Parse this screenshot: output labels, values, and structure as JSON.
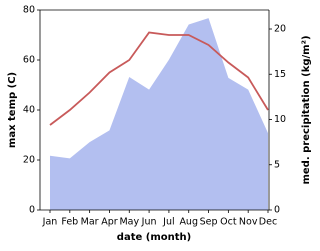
{
  "chart_data": {
    "type": "line-area",
    "xlabel": "date (month)",
    "ylabel": "max temp (C)",
    "y2label": "med. precipitation (kg/m²)",
    "categories": [
      "Jan",
      "Feb",
      "Mar",
      "Apr",
      "May",
      "Jun",
      "Jul",
      "Aug",
      "Sep",
      "Oct",
      "Nov",
      "Dec"
    ],
    "series": [
      {
        "name": "max temp",
        "type": "line",
        "color": "#c85a5a",
        "values": [
          34,
          40,
          47,
          55,
          60,
          71,
          70,
          70,
          66,
          59,
          53,
          40
        ]
      },
      {
        "name": "med. precipitation",
        "type": "area",
        "axis": "y2",
        "color": "#b3bff0",
        "values": [
          6.0,
          5.7,
          7.5,
          8.8,
          14.7,
          13.3,
          16.6,
          20.5,
          21.2,
          14.6,
          13.3,
          8.5
        ]
      }
    ],
    "ylim": [
      0,
      80
    ],
    "yticks": [
      0,
      20,
      40,
      60,
      80
    ],
    "y2lim": [
      0,
      22.1
    ],
    "y2ticks": [
      0,
      5,
      10,
      15,
      20
    ]
  }
}
